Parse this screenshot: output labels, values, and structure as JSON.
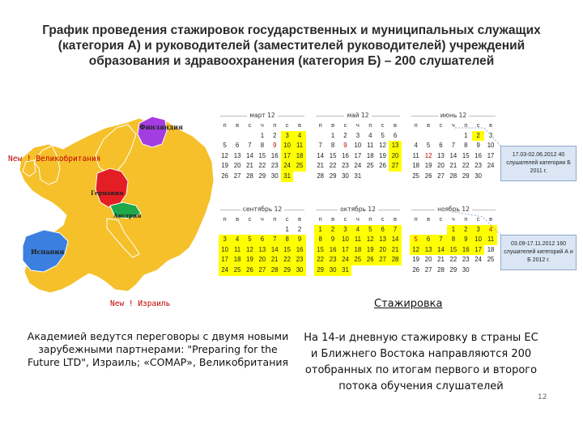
{
  "title": "График проведения стажировок государственных и муниципальных служащих (категория А) и руководителей (заместителей руководителей) учреждений образования и здравоохранения (категория Б) – 200 слушателей",
  "map": {
    "labels": {
      "finland": "Финляндия",
      "germany": "Германия",
      "austria": "Австрия",
      "spain": "Испания"
    },
    "new_uk": "New ! Великобритания",
    "new_israel": "New ! Израиль",
    "colors": {
      "land": "#f5c02a",
      "finland": "#a33de2",
      "germany": "#e31e24",
      "austria": "#1fa84a",
      "spain": "#3b7fe0"
    }
  },
  "calendar": {
    "weekday_headers": [
      "п",
      "в",
      "с",
      "ч",
      "п",
      "с",
      "в"
    ],
    "months": [
      {
        "name": "март 12",
        "rows": [
          [
            "",
            "",
            "",
            "1",
            "2",
            "3",
            "4"
          ],
          [
            "5",
            "6",
            "7",
            "8",
            "9",
            "10",
            "11"
          ],
          [
            "12",
            "13",
            "14",
            "15",
            "16",
            "17",
            "18"
          ],
          [
            "19",
            "20",
            "21",
            "22",
            "23",
            "24",
            "25"
          ],
          [
            "26",
            "27",
            "28",
            "29",
            "30",
            "31",
            ""
          ]
        ],
        "highlighted": [
          "3",
          "4",
          "10",
          "11",
          "17",
          "18",
          "24",
          "25",
          "31"
        ]
      },
      {
        "name": "май 12",
        "rows": [
          [
            "",
            "1",
            "2",
            "3",
            "4",
            "5",
            "6"
          ],
          [
            "7",
            "8",
            "9",
            "10",
            "11",
            "12",
            "13"
          ],
          [
            "14",
            "15",
            "16",
            "17",
            "18",
            "19",
            "20"
          ],
          [
            "21",
            "22",
            "23",
            "24",
            "25",
            "26",
            "27"
          ],
          [
            "28",
            "29",
            "30",
            "31",
            "",
            "",
            ""
          ]
        ],
        "highlighted": [
          "13",
          "20",
          "27"
        ]
      },
      {
        "name": "июнь 12",
        "rows": [
          [
            "",
            "",
            "",
            "",
            "1",
            "2",
            "3"
          ],
          [
            "4",
            "5",
            "6",
            "7",
            "8",
            "9",
            "10"
          ],
          [
            "11",
            "12",
            "13",
            "14",
            "15",
            "16",
            "17"
          ],
          [
            "18",
            "19",
            "20",
            "21",
            "22",
            "23",
            "24"
          ],
          [
            "25",
            "26",
            "27",
            "28",
            "29",
            "30",
            ""
          ]
        ],
        "highlighted": [
          "2"
        ]
      },
      {
        "name": "сентябрь 12",
        "rows": [
          [
            "",
            "",
            "",
            "",
            "",
            "1",
            "2"
          ],
          [
            "3",
            "4",
            "5",
            "6",
            "7",
            "8",
            "9"
          ],
          [
            "10",
            "11",
            "12",
            "13",
            "14",
            "15",
            "16"
          ],
          [
            "17",
            "18",
            "19",
            "20",
            "21",
            "22",
            "23"
          ],
          [
            "24",
            "25",
            "26",
            "27",
            "28",
            "29",
            "30"
          ]
        ],
        "highlighted": [
          "3",
          "4",
          "5",
          "6",
          "7",
          "8",
          "9",
          "10",
          "11",
          "12",
          "13",
          "14",
          "15",
          "16",
          "17",
          "18",
          "19",
          "20",
          "21",
          "22",
          "23",
          "24",
          "25",
          "26",
          "27",
          "28",
          "29",
          "30"
        ]
      },
      {
        "name": "октябрь 12",
        "rows": [
          [
            "1",
            "2",
            "3",
            "4",
            "5",
            "6",
            "7"
          ],
          [
            "8",
            "9",
            "10",
            "11",
            "12",
            "13",
            "14"
          ],
          [
            "15",
            "16",
            "17",
            "18",
            "19",
            "20",
            "21"
          ],
          [
            "22",
            "23",
            "24",
            "25",
            "26",
            "27",
            "28"
          ],
          [
            "29",
            "30",
            "31",
            "",
            "",
            "",
            ""
          ]
        ],
        "highlighted": [
          "1",
          "2",
          "3",
          "4",
          "5",
          "6",
          "7",
          "8",
          "9",
          "10",
          "11",
          "12",
          "13",
          "14",
          "15",
          "16",
          "17",
          "18",
          "19",
          "20",
          "21",
          "22",
          "23",
          "24",
          "25",
          "26",
          "27",
          "28",
          "29",
          "30",
          "31"
        ]
      },
      {
        "name": "ноябрь 12",
        "rows": [
          [
            "",
            "",
            "",
            "1",
            "2",
            "3",
            "4"
          ],
          [
            "5",
            "6",
            "7",
            "8",
            "9",
            "10",
            "11"
          ],
          [
            "12",
            "13",
            "14",
            "15",
            "16",
            "17",
            "18"
          ],
          [
            "19",
            "20",
            "21",
            "22",
            "23",
            "24",
            "25"
          ],
          [
            "26",
            "27",
            "28",
            "29",
            "30",
            "",
            ""
          ]
        ],
        "highlighted": [
          "1",
          "2",
          "3",
          "4",
          "5",
          "6",
          "7",
          "8",
          "9",
          "10",
          "11",
          "12",
          "13",
          "14",
          "15",
          "16",
          "17"
        ]
      }
    ]
  },
  "notes": {
    "first": "17.03-02.06.2012 40 слушателей категории Б 2011 г.",
    "second": "03.09-17.11.2012 160 слушателей категорий А и Б 2012 г."
  },
  "internship_heading": "Стажировка",
  "left_text": "Академией ведутся переговоры с двумя новыми зарубежными партнерами: \"Preparing for the Future LTD\", Израиль; «COMAP», Великобритания",
  "right_text": "На 14-и дневную стажировку в страны ЕС и Ближнего Востока направляются 200 отобранных по итогам первого и второго потока обучения слушателей",
  "page_number": "12",
  "highlight_color": "#ffff00",
  "note_color": "#dbe6f4"
}
